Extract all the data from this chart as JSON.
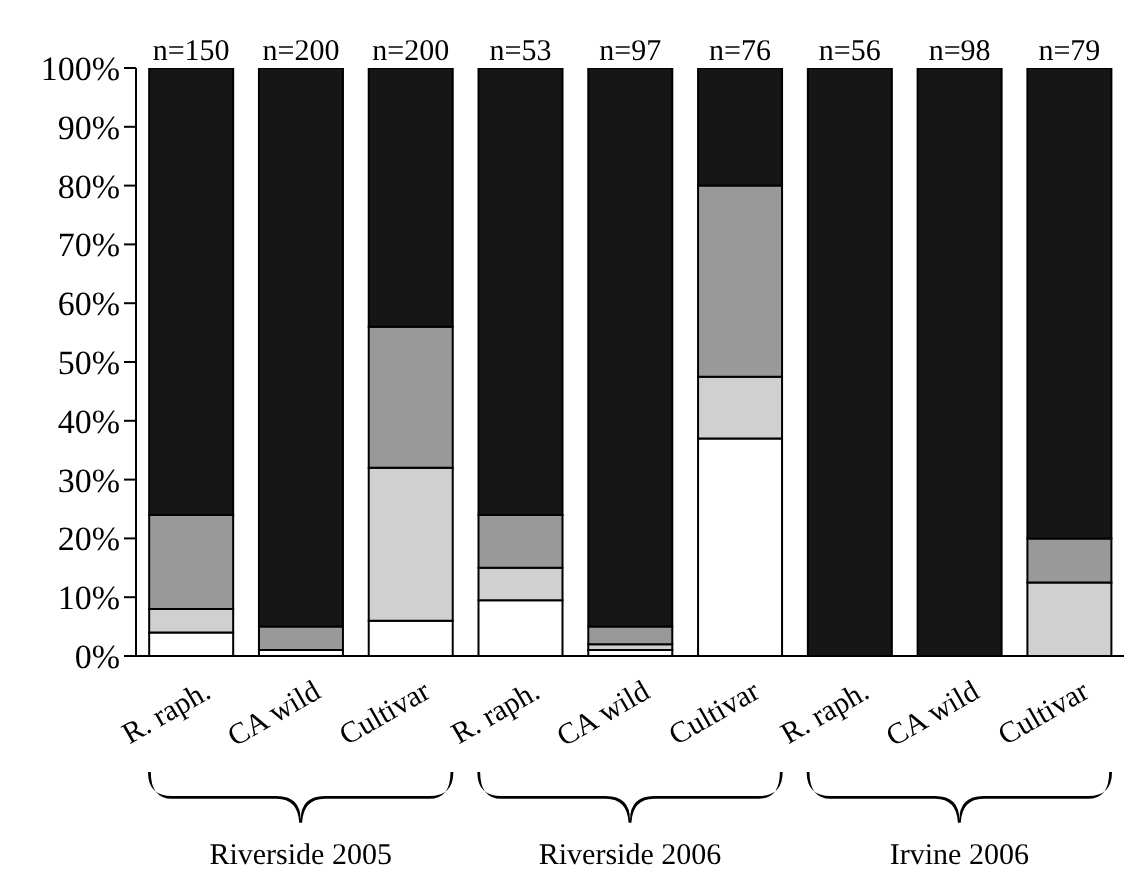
{
  "chart_data": {
    "type": "bar",
    "stacked": true,
    "categories": [
      "R. raph.",
      "CA wild",
      "Cultivar",
      "R. raph.",
      "CA wild",
      "Cultivar",
      "R. raph.",
      "CA wild",
      "Cultivar"
    ],
    "series": [
      {
        "color": "#ffffff",
        "values": [
          4,
          1,
          6,
          9.5,
          1,
          37,
          0,
          0,
          0
        ]
      },
      {
        "color": "#d0d0d0",
        "values": [
          4,
          0,
          26,
          5.5,
          1,
          10.5,
          0,
          0,
          12.5
        ]
      },
      {
        "color": "#999999",
        "values": [
          16,
          4,
          24,
          9,
          3,
          32.5,
          0,
          0,
          7.5
        ]
      },
      {
        "color": "#161616",
        "values": [
          76,
          95,
          44,
          76,
          95,
          20,
          100,
          100,
          80
        ]
      }
    ],
    "ylim": [
      0,
      100
    ],
    "yticks": [
      {
        "value": 0,
        "label": "0%"
      },
      {
        "value": 10,
        "label": "10%"
      },
      {
        "value": 20,
        "label": "20%"
      },
      {
        "value": 30,
        "label": "30%"
      },
      {
        "value": 40,
        "label": "40%"
      },
      {
        "value": 50,
        "label": "50%"
      },
      {
        "value": 60,
        "label": "60%"
      },
      {
        "value": 70,
        "label": "70%"
      },
      {
        "value": 80,
        "label": "80%"
      },
      {
        "value": 90,
        "label": "90%"
      },
      {
        "value": 100,
        "label": "100%"
      }
    ],
    "annotations": [
      "n=150",
      "n=200",
      "n=200",
      "n=53",
      "n=97",
      "n=76",
      "n=56",
      "n=98",
      "n=79",
      "Riverside 2005",
      "Riverside 2006",
      "Irvine 2006"
    ],
    "grid": false,
    "legend": false
  }
}
